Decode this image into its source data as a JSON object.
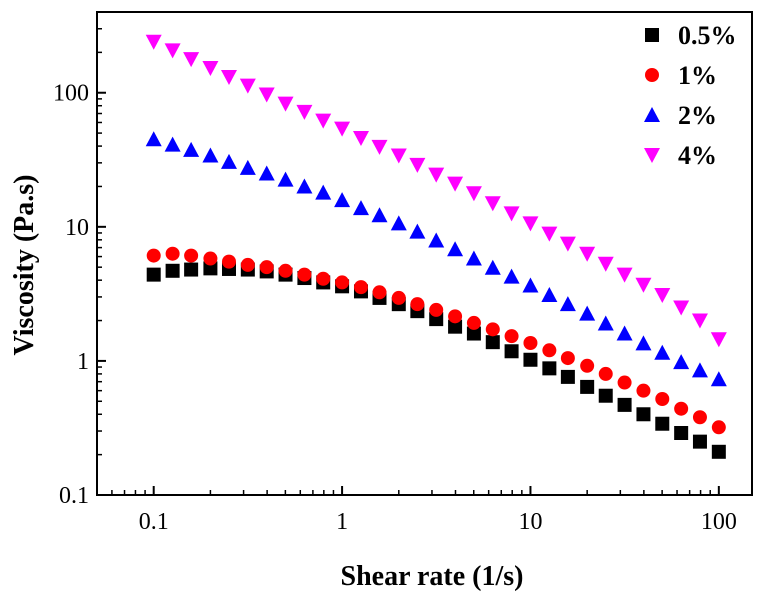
{
  "chart_data": {
    "type": "scatter",
    "title": "",
    "xlabel": "Shear rate (1/s)",
    "ylabel": "Viscosity (Pa.s)",
    "xscale": "log",
    "yscale": "log",
    "xlim": [
      0.05,
      150
    ],
    "ylim": [
      0.1,
      400
    ],
    "xticks": [
      {
        "value": 0.1,
        "label": "0.1"
      },
      {
        "value": 1,
        "label": "1"
      },
      {
        "value": 10,
        "label": "10"
      },
      {
        "value": 100,
        "label": "100"
      }
    ],
    "yticks": [
      {
        "value": 0.1,
        "label": "0.1"
      },
      {
        "value": 1,
        "label": "1"
      },
      {
        "value": 10,
        "label": "10"
      },
      {
        "value": 100,
        "label": "100"
      }
    ],
    "legend_position": "top-right",
    "x": [
      0.1,
      0.126,
      0.158,
      0.2,
      0.251,
      0.316,
      0.398,
      0.501,
      0.631,
      0.794,
      1,
      1.26,
      1.58,
      2,
      2.51,
      3.16,
      3.98,
      5.01,
      6.31,
      7.94,
      10,
      12.6,
      15.8,
      20,
      25.1,
      31.6,
      39.8,
      50.1,
      63.1,
      79.4,
      100
    ],
    "series": [
      {
        "name": "0.5%",
        "marker": "square",
        "color": "#000000",
        "values": [
          4.4,
          4.7,
          4.8,
          4.9,
          4.85,
          4.8,
          4.65,
          4.4,
          4.15,
          3.85,
          3.6,
          3.3,
          2.95,
          2.65,
          2.35,
          2.05,
          1.8,
          1.6,
          1.38,
          1.18,
          1.02,
          0.88,
          0.76,
          0.64,
          0.55,
          0.47,
          0.4,
          0.34,
          0.29,
          0.25,
          0.21
        ]
      },
      {
        "name": "1%",
        "marker": "circle",
        "color": "#ff0000",
        "values": [
          6.1,
          6.3,
          6.1,
          5.8,
          5.5,
          5.2,
          5.0,
          4.7,
          4.4,
          4.1,
          3.85,
          3.55,
          3.25,
          2.95,
          2.65,
          2.4,
          2.15,
          1.92,
          1.72,
          1.53,
          1.36,
          1.2,
          1.05,
          0.92,
          0.8,
          0.69,
          0.6,
          0.52,
          0.44,
          0.38,
          0.32
        ]
      },
      {
        "name": "2%",
        "marker": "triangle-up",
        "color": "#0000ff",
        "values": [
          45,
          41,
          37.5,
          34,
          30.5,
          27.5,
          25,
          22.5,
          20,
          18,
          15.8,
          13.8,
          12.2,
          10.6,
          9.2,
          7.9,
          6.8,
          5.8,
          4.95,
          4.25,
          3.65,
          3.1,
          2.65,
          2.25,
          1.9,
          1.6,
          1.35,
          1.15,
          0.98,
          0.85,
          0.73
        ]
      },
      {
        "name": "4%",
        "marker": "triangle-down",
        "color": "#ff00ff",
        "values": [
          240,
          207,
          178,
          153,
          131,
          113,
          97,
          83,
          72,
          62,
          54,
          46,
          39.5,
          34,
          29,
          24.5,
          21,
          17.8,
          15,
          12.6,
          10.6,
          8.9,
          7.5,
          6.3,
          5.3,
          4.4,
          3.7,
          3.1,
          2.5,
          2.0,
          1.45
        ]
      }
    ]
  }
}
